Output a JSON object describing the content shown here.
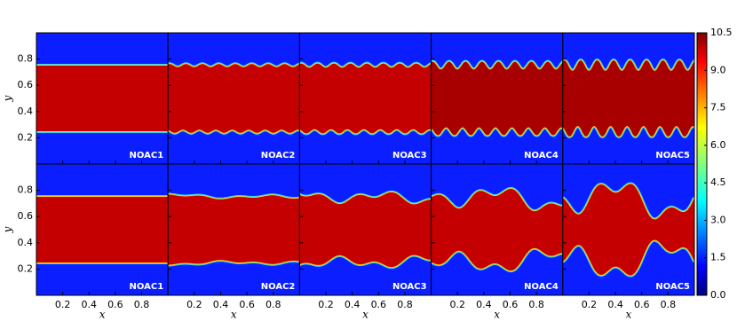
{
  "chart_data": {
    "type": "heatmap",
    "xlabel": "x",
    "ylabel": "y",
    "xlim": [
      0,
      1
    ],
    "ylim": [
      0,
      1
    ],
    "xticks": [
      0.2,
      0.4,
      0.6,
      0.8
    ],
    "yticks": [
      0.2,
      0.4,
      0.6,
      0.8
    ],
    "rows": [
      [
        "NOAC1",
        "NOAC2",
        "NOAC3",
        "NOAC4",
        "NOAC5"
      ],
      [
        "NOAC1",
        "NOAC2",
        "NOAC3",
        "NOAC4",
        "NOAC5"
      ]
    ],
    "colorbar": {
      "lim": [
        0,
        10.5
      ],
      "colormap": "jet",
      "ticks": [
        {
          "value": 0,
          "label": "0.0"
        },
        1.5,
        {
          "value": 3,
          "label": "3.0"
        },
        4.5,
        {
          "value": 6,
          "label": "6.0"
        },
        7.5,
        {
          "value": 9,
          "label": "9.0"
        },
        10.5
      ]
    }
  }
}
